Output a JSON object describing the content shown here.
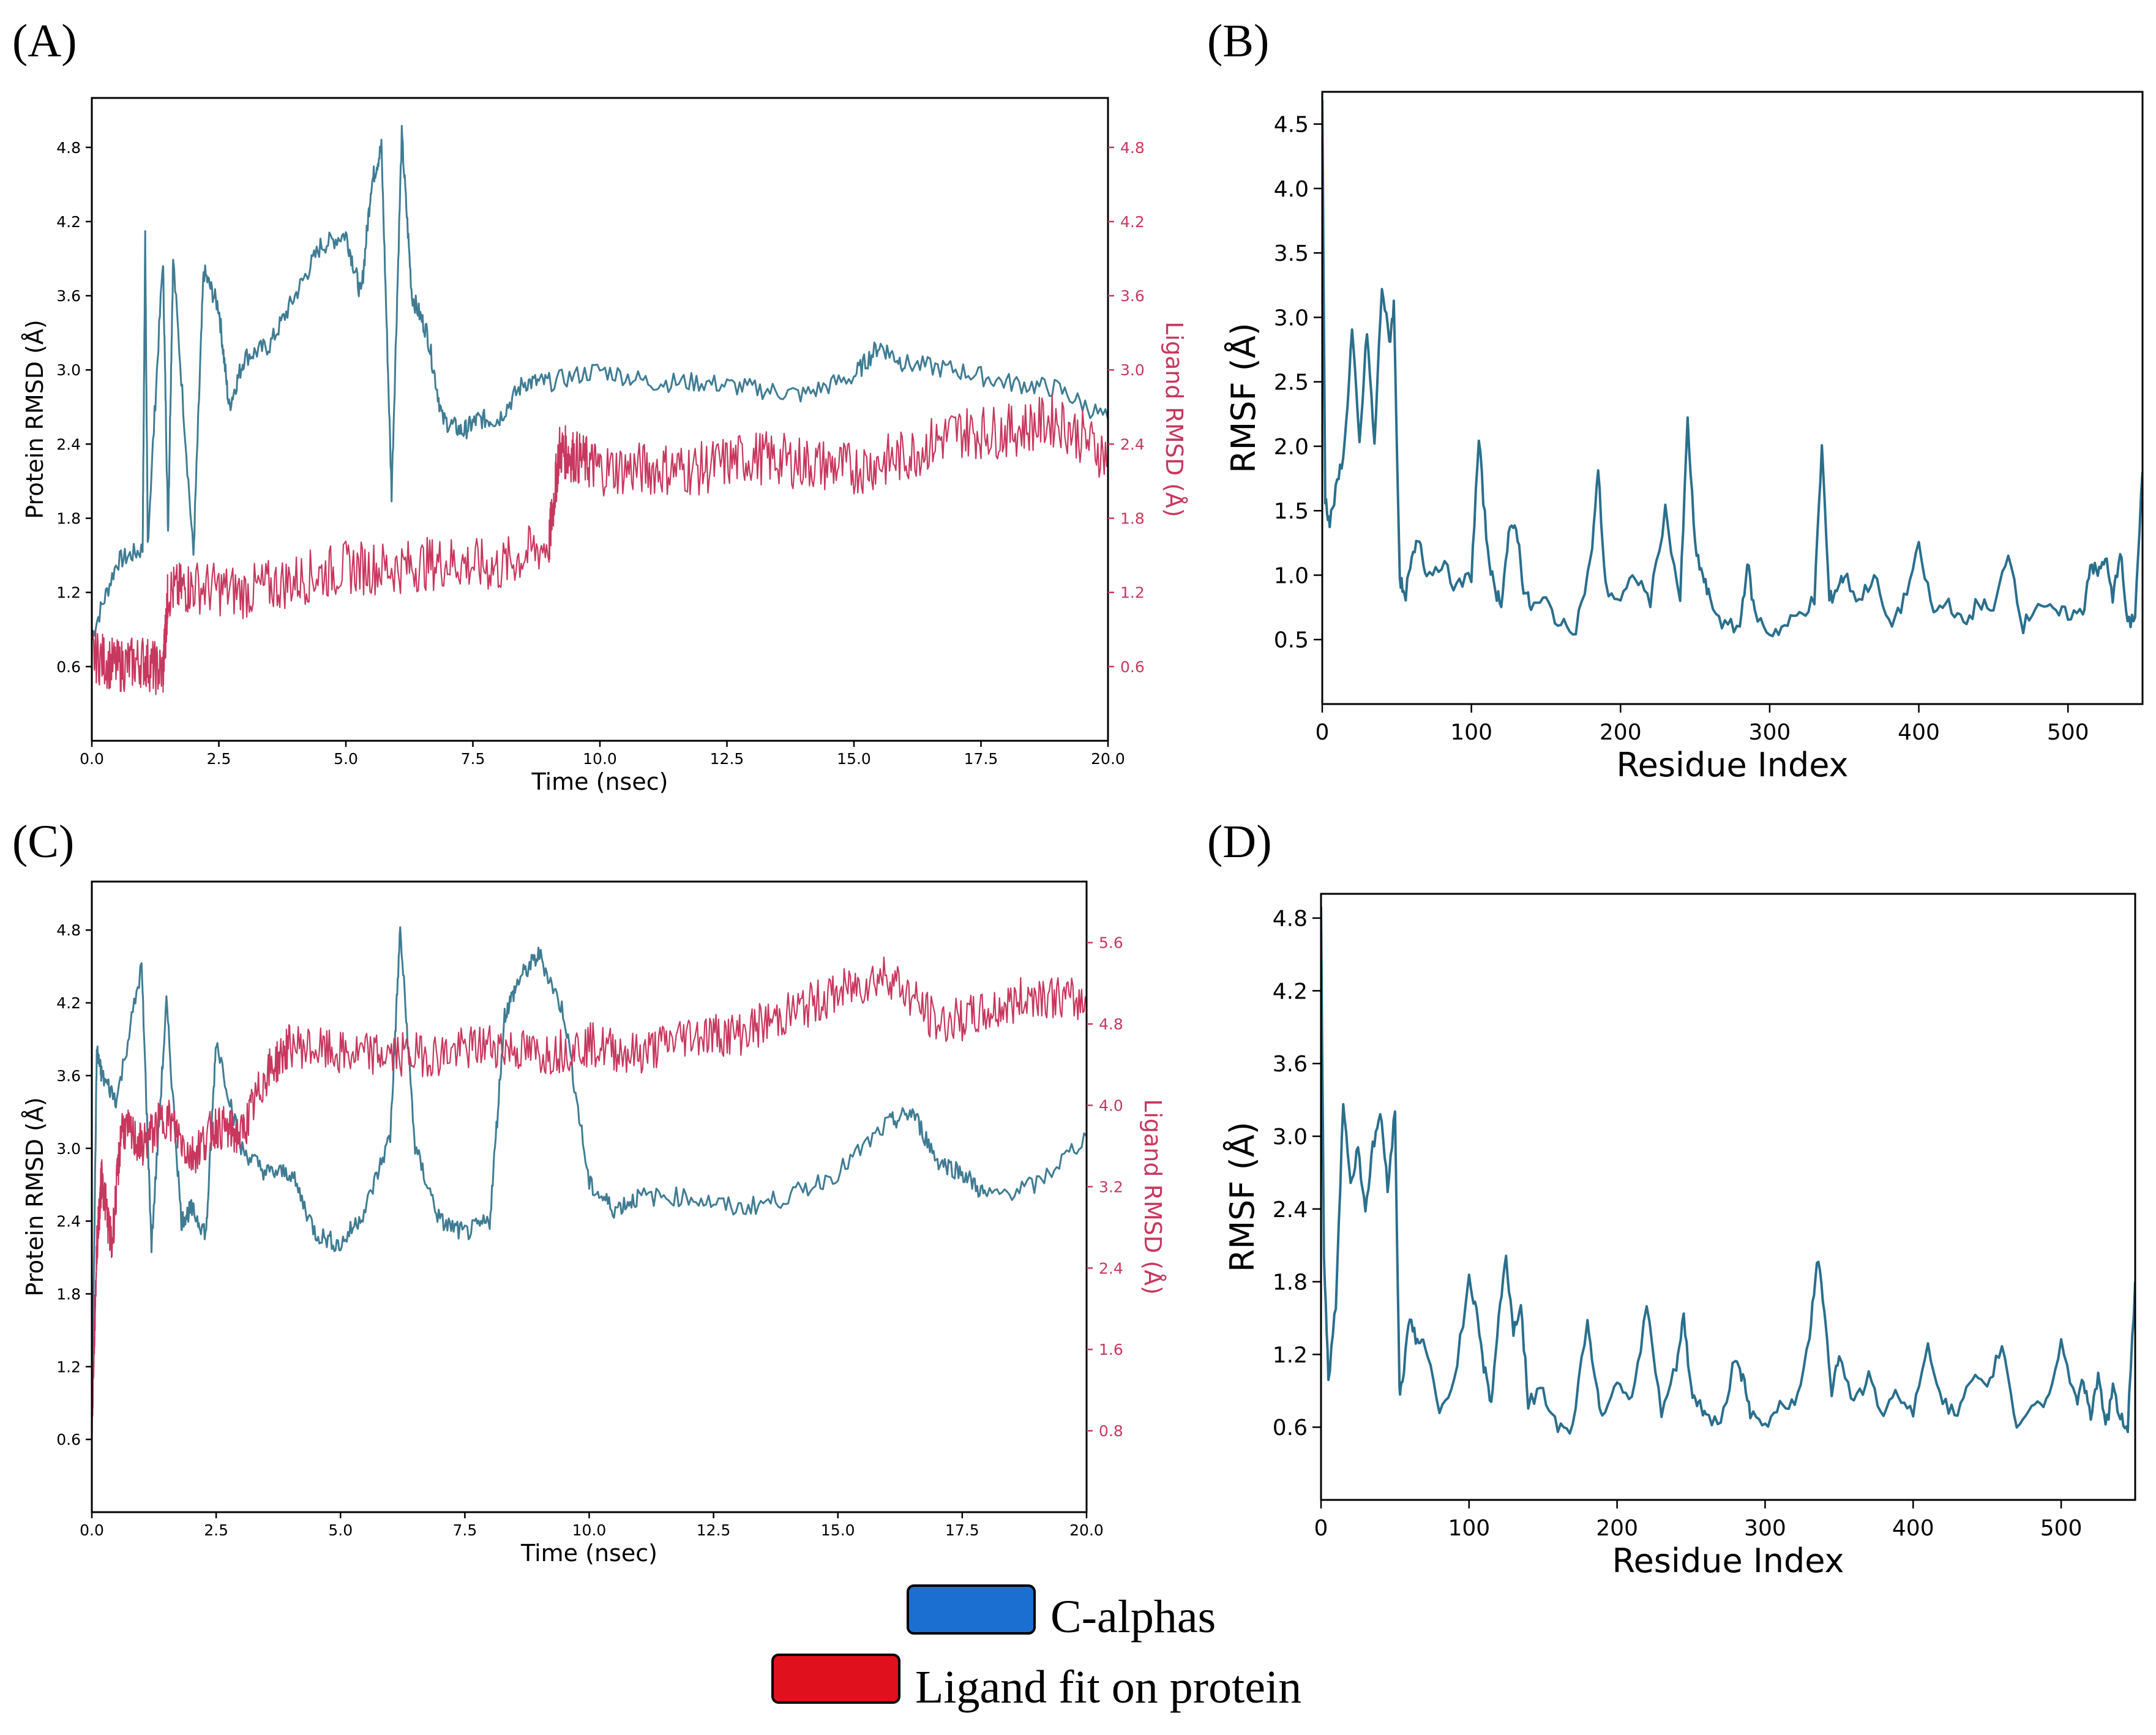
{
  "panels": {
    "A": "(A)",
    "B": "(B)",
    "C": "(C)",
    "D": "(D)"
  },
  "legend": {
    "items": [
      {
        "label": "C-alphas",
        "color": "#1a6fd1"
      },
      {
        "label": "Ligand fit on protein",
        "color": "#e0101d"
      }
    ]
  },
  "colors": {
    "protein": "#3f7c93",
    "ligand": "#c8375e",
    "rmsf": "#2a6f8d"
  },
  "chart_data": [
    {
      "id": "A",
      "type": "line",
      "xlabel": "Time (nsec)",
      "ylabel": "Protein RMSD (Å)",
      "y2label": "Ligand RMSD (Å)",
      "xlim": [
        0,
        20
      ],
      "ylim": [
        0,
        5.2
      ],
      "y2lim": [
        0,
        5.2
      ],
      "xticks": [
        0.0,
        2.5,
        5.0,
        7.5,
        10.0,
        12.5,
        15.0,
        17.5,
        20.0
      ],
      "yticks": [
        0.6,
        1.2,
        1.8,
        2.4,
        3.0,
        3.6,
        4.2,
        4.8
      ],
      "y2ticks": [
        0.6,
        1.2,
        1.8,
        2.4,
        3.0,
        3.6,
        4.2,
        4.8
      ],
      "series": [
        {
          "name": "C-alphas",
          "axis": "left",
          "x": [
            0,
            0.5,
            1.0,
            1.05,
            1.1,
            1.4,
            1.5,
            1.6,
            2.0,
            2.2,
            2.5,
            2.7,
            3.0,
            3.5,
            4.0,
            4.5,
            5.0,
            5.3,
            5.5,
            5.7,
            5.9,
            6.1,
            6.3,
            6.6,
            6.9,
            7.3,
            7.6,
            8.0,
            8.5,
            9.0,
            10,
            11,
            12,
            13,
            14,
            15,
            15.5,
            16,
            17,
            18,
            19,
            20
          ],
          "y": [
            0.85,
            1.45,
            1.55,
            4.05,
            1.6,
            3.9,
            1.7,
            3.9,
            1.5,
            3.8,
            3.5,
            2.7,
            3.1,
            3.2,
            3.6,
            4.0,
            4.1,
            3.6,
            4.5,
            4.8,
            2.0,
            4.9,
            3.6,
            3.3,
            2.6,
            2.5,
            2.6,
            2.6,
            2.9,
            2.9,
            3.0,
            2.9,
            2.9,
            2.85,
            2.8,
            2.95,
            3.2,
            3.05,
            3.0,
            2.9,
            2.85,
            2.6
          ]
        },
        {
          "name": "Ligand fit on protein",
          "axis": "right",
          "x": [
            0,
            0.5,
            1.0,
            1.4,
            1.5,
            2.0,
            3.0,
            4.0,
            5.0,
            6.0,
            7.0,
            8.0,
            9.0,
            9.2,
            9.5,
            10,
            11,
            12,
            13,
            14,
            15,
            16,
            17,
            18,
            19,
            20
          ],
          "y": [
            0.7,
            0.6,
            0.65,
            0.55,
            1.2,
            1.25,
            1.2,
            1.3,
            1.4,
            1.4,
            1.45,
            1.4,
            1.6,
            2.35,
            2.3,
            2.2,
            2.2,
            2.2,
            2.3,
            2.25,
            2.2,
            2.3,
            2.5,
            2.5,
            2.6,
            2.3
          ]
        }
      ]
    },
    {
      "id": "B",
      "type": "line",
      "xlabel": "Residue Index",
      "ylabel": "RMSF (Å)",
      "xlim": [
        0,
        550
      ],
      "ylim": [
        0,
        4.75
      ],
      "xticks": [
        0,
        100,
        200,
        300,
        400,
        500
      ],
      "yticks": [
        0.5,
        1.0,
        1.5,
        2.0,
        2.5,
        3.0,
        3.5,
        4.0,
        4.5
      ],
      "series": [
        {
          "x": [
            0,
            2,
            5,
            10,
            15,
            20,
            25,
            30,
            35,
            40,
            45,
            48,
            52,
            55,
            60,
            65,
            70,
            80,
            90,
            100,
            105,
            110,
            115,
            120,
            125,
            130,
            135,
            140,
            150,
            160,
            170,
            180,
            185,
            190,
            200,
            210,
            220,
            230,
            240,
            245,
            250,
            255,
            260,
            270,
            280,
            285,
            290,
            300,
            310,
            320,
            330,
            335,
            340,
            345,
            350,
            360,
            370,
            380,
            390,
            400,
            410,
            420,
            430,
            440,
            450,
            460,
            470,
            480,
            490,
            500,
            510,
            515,
            520,
            525,
            530,
            535,
            540,
            545,
            550
          ],
          "y": [
            4.7,
            1.6,
            1.4,
            1.7,
            2.0,
            2.9,
            2.0,
            2.9,
            2.0,
            3.25,
            2.8,
            3.1,
            1.0,
            0.8,
            1.1,
            1.3,
            1.0,
            1.1,
            0.9,
            1.0,
            2.05,
            1.3,
            0.9,
            0.8,
            1.3,
            1.4,
            0.9,
            0.75,
            0.8,
            0.6,
            0.6,
            1.1,
            1.8,
            0.9,
            0.8,
            1.0,
            0.8,
            1.5,
            0.8,
            2.2,
            1.2,
            1.0,
            0.8,
            0.6,
            0.6,
            1.1,
            0.7,
            0.55,
            0.6,
            0.7,
            0.8,
            2.0,
            0.8,
            0.9,
            1.0,
            0.8,
            1.0,
            0.6,
            0.8,
            1.2,
            0.7,
            0.8,
            0.6,
            0.8,
            0.7,
            1.2,
            0.6,
            0.8,
            0.7,
            0.7,
            0.7,
            1.1,
            1.0,
            1.15,
            0.8,
            1.2,
            0.6,
            0.7,
            1.8
          ]
        }
      ]
    },
    {
      "id": "C",
      "type": "line",
      "xlabel": "Time (nsec)",
      "ylabel": "Protein RMSD (Å)",
      "y2label": "Ligand RMSD (Å)",
      "xlim": [
        0,
        20
      ],
      "ylim": [
        0,
        5.2
      ],
      "y2lim": [
        0,
        6.2
      ],
      "xticks": [
        0.0,
        2.5,
        5.0,
        7.5,
        10.0,
        12.5,
        15.0,
        17.5,
        20.0
      ],
      "yticks": [
        0.6,
        1.2,
        1.8,
        2.4,
        3.0,
        3.6,
        4.2,
        4.8
      ],
      "y2ticks": [
        0.8,
        1.6,
        2.4,
        3.2,
        4.0,
        4.8,
        5.6
      ],
      "series": [
        {
          "name": "C-alphas",
          "axis": "left",
          "x": [
            0,
            0.1,
            0.2,
            0.5,
            1.0,
            1.2,
            1.5,
            1.8,
            2.0,
            2.3,
            2.5,
            3.0,
            3.5,
            4.0,
            4.5,
            5.0,
            5.5,
            6.0,
            6.2,
            6.5,
            7.0,
            7.5,
            8.0,
            8.3,
            8.6,
            9.0,
            9.5,
            10,
            10.5,
            11,
            12,
            13,
            14,
            15,
            16,
            16.5,
            17,
            17.5,
            18,
            19,
            20
          ],
          "y": [
            0.8,
            3.8,
            3.6,
            3.4,
            4.5,
            2.2,
            4.2,
            2.4,
            2.5,
            2.3,
            3.9,
            3.0,
            2.8,
            2.8,
            2.3,
            2.2,
            2.5,
            3.1,
            4.8,
            3.0,
            2.4,
            2.3,
            2.4,
            4.1,
            4.4,
            4.6,
            4.1,
            2.7,
            2.5,
            2.6,
            2.6,
            2.5,
            2.6,
            2.8,
            3.2,
            3.3,
            2.9,
            2.8,
            2.6,
            2.7,
            3.1
          ]
        },
        {
          "name": "Ligand fit on protein",
          "axis": "right",
          "x": [
            0,
            0.1,
            0.2,
            0.4,
            0.6,
            1.0,
            1.5,
            2.0,
            2.5,
            3.0,
            3.5,
            4.0,
            5.0,
            6.0,
            7.0,
            8.0,
            9.0,
            10,
            11,
            12,
            13,
            14,
            15,
            16,
            17,
            18,
            19,
            20
          ],
          "y": [
            0.8,
            2.6,
            3.3,
            2.6,
            3.8,
            3.6,
            3.9,
            3.5,
            3.8,
            3.7,
            4.3,
            4.6,
            4.5,
            4.5,
            4.5,
            4.6,
            4.5,
            4.6,
            4.5,
            4.7,
            4.7,
            4.9,
            5.1,
            5.3,
            4.8,
            4.9,
            5.1,
            5.0
          ]
        }
      ]
    },
    {
      "id": "D",
      "type": "line",
      "xlabel": "Residue Index",
      "ylabel": "RMSF (Å)",
      "xlim": [
        0,
        550
      ],
      "ylim": [
        0,
        5.0
      ],
      "xticks": [
        0,
        100,
        200,
        300,
        400,
        500
      ],
      "yticks": [
        0.6,
        1.2,
        1.8,
        2.4,
        3.0,
        3.6,
        4.2,
        4.8
      ],
      "series": [
        {
          "x": [
            0,
            2,
            5,
            10,
            15,
            20,
            25,
            30,
            35,
            40,
            45,
            50,
            53,
            55,
            60,
            65,
            70,
            80,
            90,
            100,
            105,
            110,
            115,
            120,
            125,
            130,
            135,
            140,
            150,
            160,
            170,
            180,
            185,
            190,
            200,
            210,
            220,
            230,
            240,
            245,
            250,
            255,
            260,
            270,
            280,
            285,
            290,
            300,
            310,
            320,
            330,
            335,
            340,
            345,
            350,
            360,
            370,
            380,
            390,
            400,
            410,
            420,
            430,
            440,
            450,
            460,
            470,
            480,
            490,
            500,
            510,
            515,
            520,
            525,
            530,
            535,
            540,
            545,
            550
          ],
          "y": [
            4.9,
            2.0,
            1.0,
            1.6,
            3.3,
            2.6,
            2.9,
            2.4,
            2.9,
            3.2,
            2.6,
            3.2,
            0.9,
            1.0,
            1.5,
            1.3,
            1.3,
            0.7,
            1.0,
            1.8,
            1.6,
            1.1,
            0.8,
            1.5,
            2.0,
            1.4,
            1.6,
            0.8,
            0.9,
            0.6,
            0.6,
            1.5,
            1.0,
            0.7,
            1.0,
            0.8,
            1.6,
            0.7,
            1.1,
            1.5,
            0.9,
            0.8,
            0.7,
            0.6,
            1.2,
            1.0,
            0.7,
            0.6,
            0.8,
            0.8,
            1.3,
            2.0,
            1.6,
            0.9,
            1.2,
            0.8,
            1.0,
            0.7,
            0.9,
            0.7,
            1.3,
            0.8,
            0.7,
            1.0,
            0.9,
            1.3,
            0.6,
            0.8,
            0.8,
            1.3,
            0.8,
            1.0,
            0.7,
            1.0,
            0.6,
            0.9,
            0.7,
            0.6,
            1.8
          ]
        }
      ]
    }
  ]
}
